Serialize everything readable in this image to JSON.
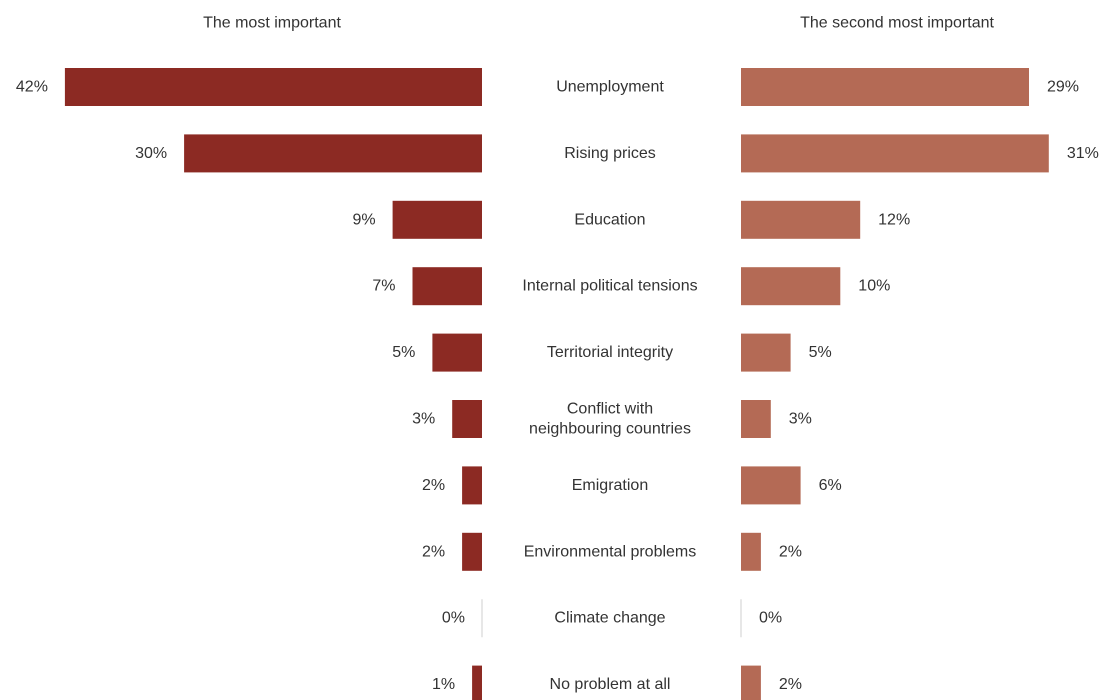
{
  "chart_data": {
    "type": "bar",
    "orientation": "horizontal",
    "categories": [
      "Unemployment",
      "Rising prices",
      "Education",
      "Internal political tensions",
      "Territorial integrity",
      "Conflict with neighbouring countries",
      "Emigration",
      "Environmental problems",
      "Climate change",
      "No problem at all"
    ],
    "category_lines": [
      [
        "Unemployment"
      ],
      [
        "Rising prices"
      ],
      [
        "Education"
      ],
      [
        "Internal political tensions"
      ],
      [
        "Territorial integrity"
      ],
      [
        "Conflict with",
        "neighbouring countries"
      ],
      [
        "Emigration"
      ],
      [
        "Environmental problems"
      ],
      [
        "Climate change"
      ],
      [
        "No problem at all"
      ]
    ],
    "series": [
      {
        "name": "The most important",
        "values": [
          42,
          30,
          9,
          7,
          5,
          3,
          2,
          2,
          0,
          1
        ],
        "value_labels": [
          "42%",
          "30%",
          "9%",
          "7%",
          "5%",
          "3%",
          "2%",
          "2%",
          "0%",
          "1%"
        ],
        "color": "#8c2a23",
        "direction": "left"
      },
      {
        "name": "The second most important",
        "values": [
          29,
          31,
          12,
          10,
          5,
          3,
          6,
          2,
          0,
          2
        ],
        "value_labels": [
          "29%",
          "31%",
          "12%",
          "10%",
          "5%",
          "3%",
          "6%",
          "2%",
          "0%",
          "2%"
        ],
        "color": "#b46a55",
        "direction": "right"
      }
    ],
    "unit": "%",
    "xlim": [
      0,
      42
    ],
    "grid": false,
    "legend": "none"
  }
}
